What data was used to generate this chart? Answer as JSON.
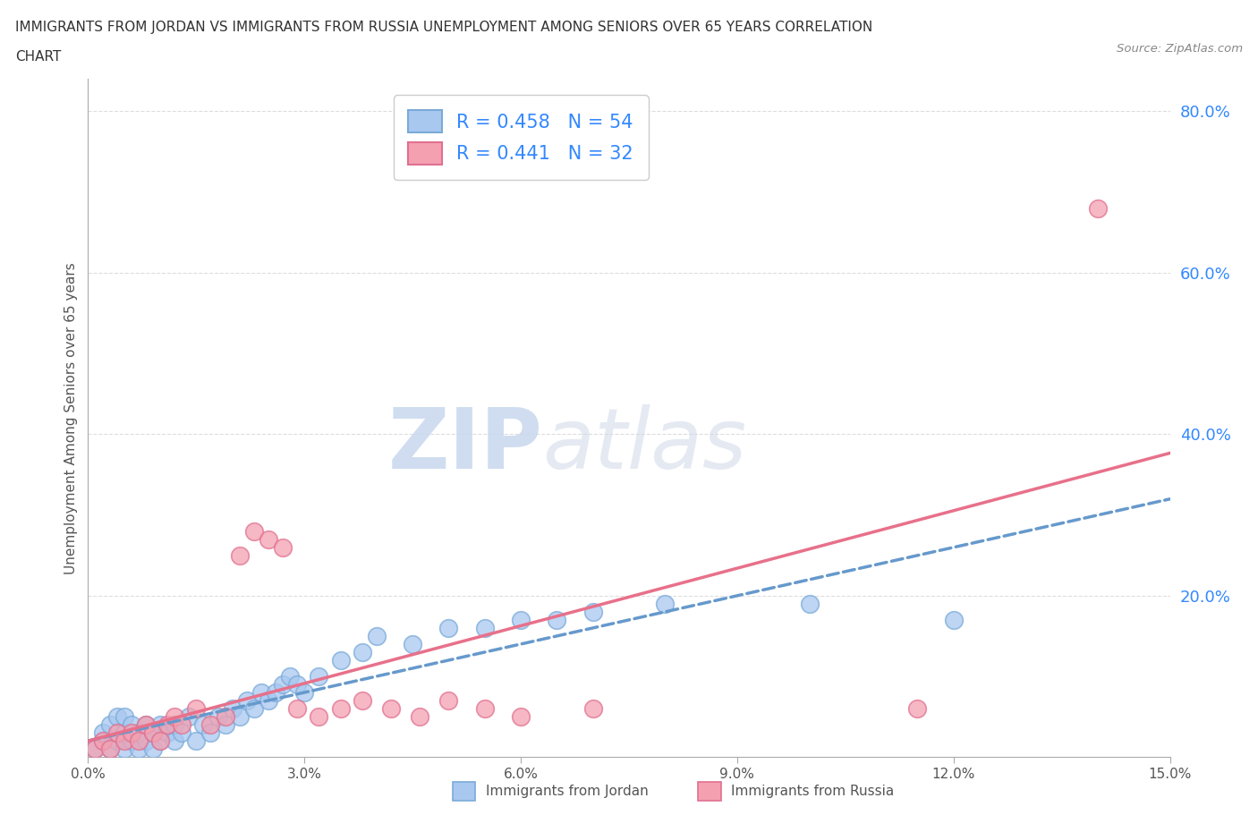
{
  "title_line1": "IMMIGRANTS FROM JORDAN VS IMMIGRANTS FROM RUSSIA UNEMPLOYMENT AMONG SENIORS OVER 65 YEARS CORRELATION",
  "title_line2": "CHART",
  "source_text": "Source: ZipAtlas.com",
  "ylabel": "Unemployment Among Seniors over 65 years",
  "xlim": [
    0.0,
    0.15
  ],
  "ylim": [
    0.0,
    0.84
  ],
  "xticks": [
    0.0,
    0.03,
    0.06,
    0.09,
    0.12,
    0.15
  ],
  "xtick_labels": [
    "0.0%",
    "3.0%",
    "6.0%",
    "9.0%",
    "12.0%",
    "15.0%"
  ],
  "right_yticks": [
    0.2,
    0.4,
    0.6,
    0.8
  ],
  "right_ytick_labels": [
    "20.0%",
    "40.0%",
    "60.0%",
    "80.0%"
  ],
  "jordan_color": "#a8c8f0",
  "jordan_edge": "#7aaad8",
  "russia_color": "#f4a0b0",
  "russia_edge": "#e07090",
  "trend_jordan_color": "#6699cc",
  "trend_russia_color": "#e8708a",
  "jordan_R": 0.458,
  "jordan_N": 54,
  "russia_R": 0.441,
  "russia_N": 32,
  "jordan_scatter_x": [
    0.001,
    0.002,
    0.002,
    0.003,
    0.003,
    0.004,
    0.004,
    0.005,
    0.005,
    0.005,
    0.006,
    0.006,
    0.007,
    0.007,
    0.008,
    0.008,
    0.009,
    0.009,
    0.01,
    0.01,
    0.011,
    0.012,
    0.012,
    0.013,
    0.014,
    0.015,
    0.016,
    0.017,
    0.018,
    0.019,
    0.02,
    0.021,
    0.022,
    0.023,
    0.024,
    0.025,
    0.026,
    0.027,
    0.028,
    0.029,
    0.03,
    0.032,
    0.035,
    0.038,
    0.04,
    0.045,
    0.05,
    0.055,
    0.06,
    0.065,
    0.07,
    0.08,
    0.1,
    0.12
  ],
  "jordan_scatter_y": [
    0.01,
    0.02,
    0.03,
    0.01,
    0.04,
    0.02,
    0.05,
    0.01,
    0.03,
    0.05,
    0.02,
    0.04,
    0.01,
    0.03,
    0.02,
    0.04,
    0.01,
    0.03,
    0.02,
    0.04,
    0.03,
    0.02,
    0.04,
    0.03,
    0.05,
    0.02,
    0.04,
    0.03,
    0.05,
    0.04,
    0.06,
    0.05,
    0.07,
    0.06,
    0.08,
    0.07,
    0.08,
    0.09,
    0.1,
    0.09,
    0.08,
    0.1,
    0.12,
    0.13,
    0.15,
    0.14,
    0.16,
    0.16,
    0.17,
    0.17,
    0.18,
    0.19,
    0.19,
    0.17
  ],
  "russia_scatter_x": [
    0.001,
    0.002,
    0.003,
    0.004,
    0.005,
    0.006,
    0.007,
    0.008,
    0.009,
    0.01,
    0.011,
    0.012,
    0.013,
    0.015,
    0.017,
    0.019,
    0.021,
    0.023,
    0.025,
    0.027,
    0.029,
    0.032,
    0.035,
    0.038,
    0.042,
    0.046,
    0.05,
    0.055,
    0.06,
    0.07,
    0.115,
    0.14
  ],
  "russia_scatter_y": [
    0.01,
    0.02,
    0.01,
    0.03,
    0.02,
    0.03,
    0.02,
    0.04,
    0.03,
    0.02,
    0.04,
    0.05,
    0.04,
    0.06,
    0.04,
    0.05,
    0.25,
    0.28,
    0.27,
    0.26,
    0.06,
    0.05,
    0.06,
    0.07,
    0.06,
    0.05,
    0.07,
    0.06,
    0.05,
    0.06,
    0.06,
    0.68
  ],
  "watermark_zip": "ZIP",
  "watermark_atlas": "atlas",
  "background_color": "#ffffff",
  "grid_color": "#dddddd",
  "legend_text_color": "#3388ff"
}
